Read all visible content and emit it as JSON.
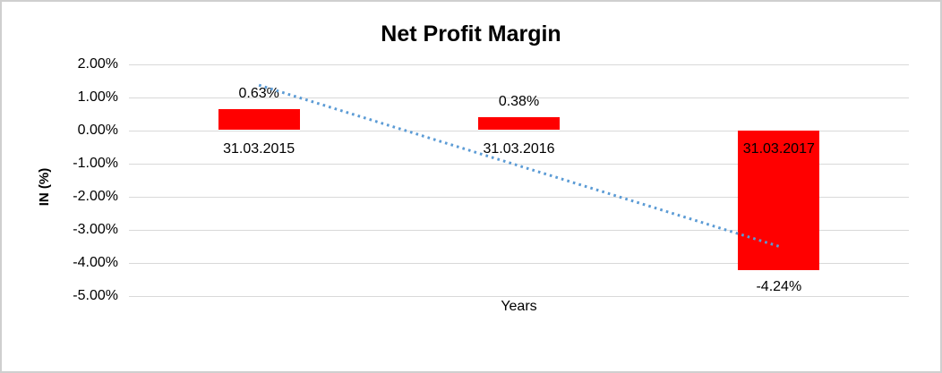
{
  "chart_data": {
    "type": "bar",
    "title": "Net Profit Margin",
    "xlabel": "Years",
    "ylabel": "IN (%)",
    "categories": [
      "31.03.2015",
      "31.03.2016",
      "31.03.2017"
    ],
    "values": [
      0.63,
      0.38,
      -4.24
    ],
    "data_labels": [
      "0.63%",
      "0.38%",
      "-4.24%"
    ],
    "yticks": {
      "values": [
        2,
        1,
        0,
        -1,
        -2,
        -3,
        -4,
        -5
      ],
      "labels": [
        "2.00%",
        "1.00%",
        "0.00%",
        "-1.00%",
        "-2.00%",
        "-3.00%",
        "-4.00%",
        "-5.00%"
      ]
    },
    "ylim": [
      -5,
      2
    ],
    "grid": true,
    "legend": false,
    "trendline": {
      "type": "linear",
      "style": "dotted",
      "start_value": 1.36,
      "end_value": -3.51
    },
    "colors": {
      "bar": "#ff0000",
      "trendline": "#5b9bd5",
      "gridline": "#d9d9d9",
      "text": "#000000"
    }
  }
}
